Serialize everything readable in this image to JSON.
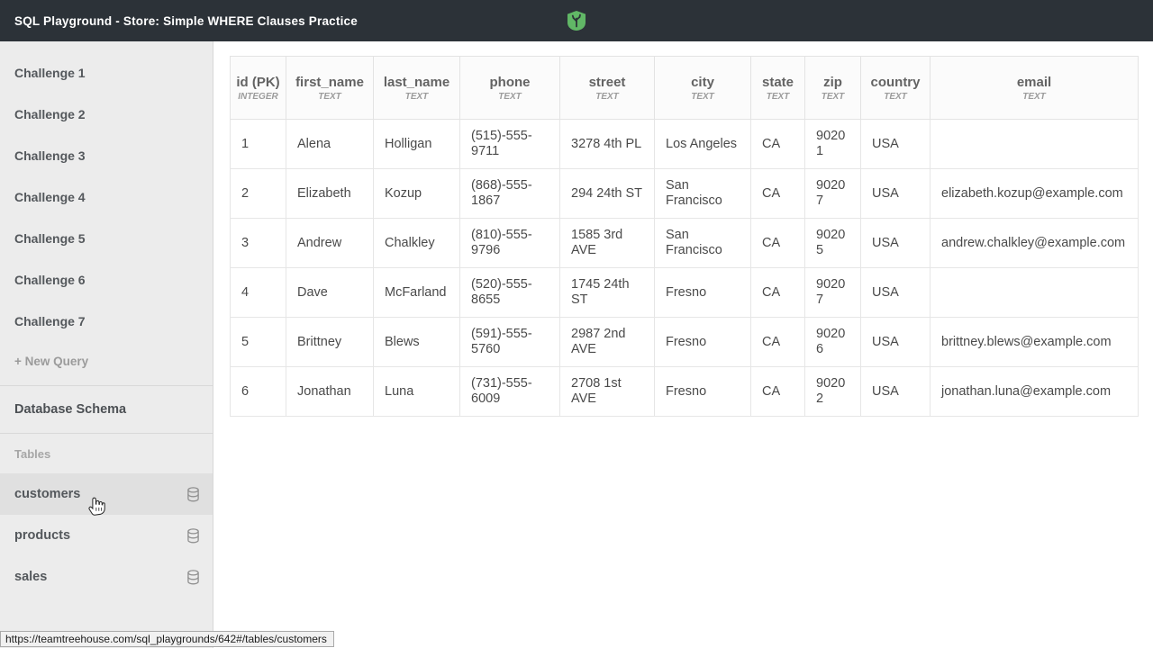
{
  "topbar": {
    "title": "SQL Playground - Store: Simple WHERE Clauses Practice",
    "logo_icon": "treehouse-logo-icon"
  },
  "colors": {
    "topbar_bg": "#2c3238",
    "brand_green": "#61b766",
    "sidebar_bg": "#ececec",
    "active_item_bg": "#e0e0e0"
  },
  "sidebar": {
    "challenges": [
      "Challenge 1",
      "Challenge 2",
      "Challenge 3",
      "Challenge 4",
      "Challenge 5",
      "Challenge 6",
      "Challenge 7"
    ],
    "new_query_label": "+ New Query",
    "schema_heading": "Database Schema",
    "tables_label": "Tables",
    "tables": [
      {
        "name": "customers",
        "icon": "database-icon",
        "active": true
      },
      {
        "name": "products",
        "icon": "database-icon",
        "active": false
      },
      {
        "name": "sales",
        "icon": "database-icon",
        "active": false
      }
    ]
  },
  "table": {
    "columns": [
      {
        "name": "id (PK)",
        "type": "INTEGER"
      },
      {
        "name": "first_name",
        "type": "TEXT"
      },
      {
        "name": "last_name",
        "type": "TEXT"
      },
      {
        "name": "phone",
        "type": "TEXT"
      },
      {
        "name": "street",
        "type": "TEXT"
      },
      {
        "name": "city",
        "type": "TEXT"
      },
      {
        "name": "state",
        "type": "TEXT"
      },
      {
        "name": "zip",
        "type": "TEXT"
      },
      {
        "name": "country",
        "type": "TEXT"
      },
      {
        "name": "email",
        "type": "TEXT"
      }
    ],
    "rows": [
      [
        "1",
        "Alena",
        "Holligan",
        "(515)-555-9711",
        "3278 4th PL",
        "Los Angeles",
        "CA",
        "90201",
        "USA",
        ""
      ],
      [
        "2",
        "Elizabeth",
        "Kozup",
        "(868)-555-1867",
        "294 24th ST",
        "San Francisco",
        "CA",
        "90207",
        "USA",
        "elizabeth.kozup@example.com"
      ],
      [
        "3",
        "Andrew",
        "Chalkley",
        "(810)-555-9796",
        "1585 3rd AVE",
        "San Francisco",
        "CA",
        "90205",
        "USA",
        "andrew.chalkley@example.com"
      ],
      [
        "4",
        "Dave",
        "McFarland",
        "(520)-555-8655",
        "1745 24th ST",
        "Fresno",
        "CA",
        "90207",
        "USA",
        ""
      ],
      [
        "5",
        "Brittney",
        "Blews",
        "(591)-555-5760",
        "2987 2nd AVE",
        "Fresno",
        "CA",
        "90206",
        "USA",
        "brittney.blews@example.com"
      ],
      [
        "6",
        "Jonathan",
        "Luna",
        "(731)-555-6009",
        "2708 1st AVE",
        "Fresno",
        "CA",
        "90202",
        "USA",
        "jonathan.luna@example.com"
      ]
    ]
  },
  "statusbar": {
    "url": "https://teamtreehouse.com/sql_playgrounds/642#/tables/customers"
  },
  "cursor": {
    "icon": "hand-pointer-icon"
  }
}
